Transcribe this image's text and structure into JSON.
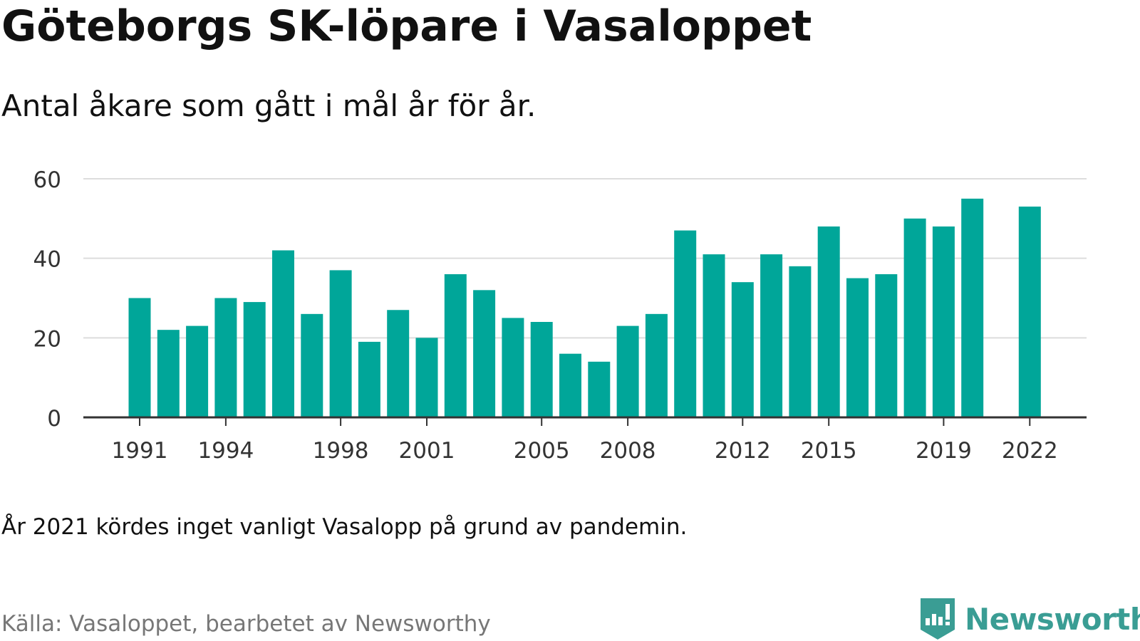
{
  "title": "Göteborgs SK-löpare i Vasaloppet",
  "subtitle": "Antal åkare som gått i mål år för år.",
  "note": "År 2021 kördes inget vanligt Vasalopp på grund av pandemin.",
  "source": "Källa: Vasaloppet, bearbetet av Newsworthy",
  "brand": "Newsworthy",
  "colors": {
    "bar": "#00a699",
    "grid": "#dddddd",
    "axis": "#333333",
    "brand": "#3a9d94"
  },
  "chart_data": {
    "type": "bar",
    "x": [
      1991,
      1992,
      1993,
      1994,
      1995,
      1996,
      1997,
      1998,
      1999,
      2000,
      2001,
      2002,
      2003,
      2004,
      2005,
      2006,
      2007,
      2008,
      2009,
      2010,
      2011,
      2012,
      2013,
      2014,
      2015,
      2016,
      2017,
      2018,
      2019,
      2020,
      2021,
      2022
    ],
    "values": [
      30,
      22,
      23,
      30,
      29,
      42,
      26,
      37,
      19,
      27,
      20,
      36,
      32,
      25,
      24,
      16,
      14,
      23,
      26,
      47,
      41,
      34,
      41,
      38,
      48,
      35,
      36,
      50,
      48,
      55,
      null,
      53
    ],
    "x_ticks": [
      1991,
      1994,
      1998,
      2001,
      2005,
      2008,
      2012,
      2015,
      2019,
      2022
    ],
    "y_ticks": [
      0,
      20,
      40,
      60
    ],
    "ylim": [
      0,
      60
    ],
    "xlim": [
      1991,
      2022
    ],
    "grid": true
  }
}
